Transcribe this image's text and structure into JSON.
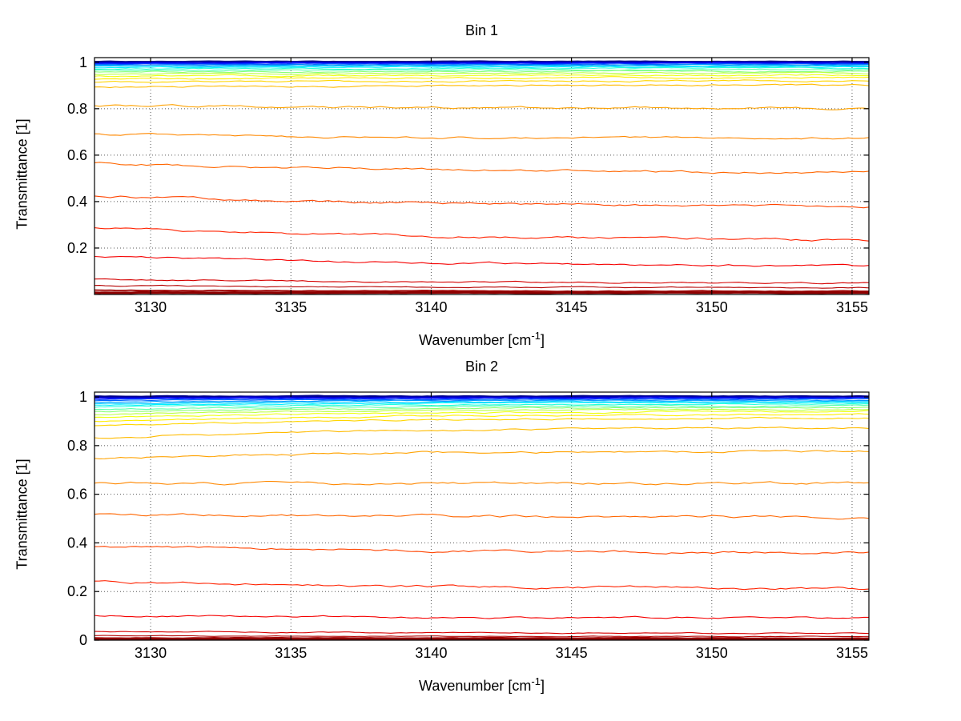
{
  "figure": {
    "background": "#ffffff",
    "axis_color": "#000000",
    "grid_style": "dotted"
  },
  "labels": {
    "xlabel_prefix": "Wavenumber [cm",
    "xlabel_sup": "-1",
    "xlabel_suffix": "]"
  },
  "chart_data": [
    {
      "type": "line",
      "title": "Bin 1",
      "xlabel": "Wavenumber [cm^-1]",
      "ylabel": "Transmittance [1]",
      "xlim": [
        3128,
        3155.6
      ],
      "ylim": [
        0,
        1.02
      ],
      "xticks": [
        3130,
        3135,
        3140,
        3145,
        3150,
        3155
      ],
      "yticks": [
        0.2,
        0.4,
        0.6,
        0.8,
        1
      ],
      "grid": true,
      "legend": "none",
      "series_note": "each series is a transmittance spectrum; l=value at left edge, r=value at right edge, k=exponential flattening rate, c=line color (jet colormap), w=line width, n=noise amplitude",
      "series": [
        {
          "l": 1.002,
          "r": 1.002,
          "k": 0,
          "c": "#00008F",
          "w": 2.6,
          "n": 0.0008
        },
        {
          "l": 0.999,
          "r": 0.999,
          "k": 0,
          "c": "#0000D0",
          "w": 1.4,
          "n": 0.0008
        },
        {
          "l": 0.996,
          "r": 0.997,
          "k": 2,
          "c": "#0000FF",
          "w": 1.1,
          "n": 0.001
        },
        {
          "l": 0.993,
          "r": 0.994,
          "k": 2,
          "c": "#0033FF",
          "w": 1.1,
          "n": 0.001
        },
        {
          "l": 0.99,
          "r": 0.991,
          "k": 2,
          "c": "#0066FF",
          "w": 1.1,
          "n": 0.0012
        },
        {
          "l": 0.986,
          "r": 0.988,
          "k": 2,
          "c": "#0099FF",
          "w": 1.1,
          "n": 0.0012
        },
        {
          "l": 0.982,
          "r": 0.984,
          "k": 2,
          "c": "#00CCFF",
          "w": 1.1,
          "n": 0.0014
        },
        {
          "l": 0.977,
          "r": 0.98,
          "k": 2,
          "c": "#00F0FF",
          "w": 1.1,
          "n": 0.0014
        },
        {
          "l": 0.971,
          "r": 0.975,
          "k": 2,
          "c": "#22FFDD",
          "w": 1.1,
          "n": 0.0016
        },
        {
          "l": 0.965,
          "r": 0.969,
          "k": 2,
          "c": "#55FFAA",
          "w": 1.1,
          "n": 0.0016
        },
        {
          "l": 0.958,
          "r": 0.962,
          "k": 2,
          "c": "#88FF77",
          "w": 1.1,
          "n": 0.0018
        },
        {
          "l": 0.949,
          "r": 0.955,
          "k": 2,
          "c": "#BBFF44",
          "w": 1.1,
          "n": 0.0018
        },
        {
          "l": 0.94,
          "r": 0.946,
          "k": 2,
          "c": "#EEFF11",
          "w": 1.1,
          "n": 0.002
        },
        {
          "l": 0.928,
          "r": 0.936,
          "k": 2,
          "c": "#FFEE00",
          "w": 1.1,
          "n": 0.002
        },
        {
          "l": 0.913,
          "r": 0.922,
          "k": 2,
          "c": "#FFD500",
          "w": 1.1,
          "n": 0.0022
        },
        {
          "l": 0.893,
          "r": 0.903,
          "k": 2,
          "c": "#FFBB00",
          "w": 1.1,
          "n": 0.0025
        },
        {
          "l": 0.815,
          "r": 0.8,
          "k": 2.5,
          "c": "#FFA200",
          "w": 1.1,
          "n": 0.003
        },
        {
          "l": 0.69,
          "r": 0.67,
          "k": 2.5,
          "c": "#FF8800",
          "w": 1.1,
          "n": 0.003
        },
        {
          "l": 0.565,
          "r": 0.52,
          "k": 2.2,
          "c": "#FF6600",
          "w": 1.1,
          "n": 0.0035
        },
        {
          "l": 0.425,
          "r": 0.375,
          "k": 2.2,
          "c": "#FF4400",
          "w": 1.1,
          "n": 0.0035
        },
        {
          "l": 0.29,
          "r": 0.225,
          "k": 2.0,
          "c": "#FF2200",
          "w": 1.1,
          "n": 0.0035
        },
        {
          "l": 0.165,
          "r": 0.113,
          "k": 1.8,
          "c": "#F50000",
          "w": 1.1,
          "n": 0.003
        },
        {
          "l": 0.065,
          "r": 0.047,
          "k": 2.0,
          "c": "#D50000",
          "w": 1.1,
          "n": 0.002
        },
        {
          "l": 0.038,
          "r": 0.028,
          "k": 2.0,
          "c": "#B50000",
          "w": 1.1,
          "n": 0.0015
        },
        {
          "l": 0.018,
          "r": 0.014,
          "k": 2.0,
          "c": "#9D0000",
          "w": 1.8,
          "n": 0.001
        },
        {
          "l": 0.008,
          "r": 0.008,
          "k": 0,
          "c": "#8F0000",
          "w": 3.0,
          "n": 0.0008
        }
      ]
    },
    {
      "type": "line",
      "title": "Bin 2",
      "xlabel": "Wavenumber [cm^-1]",
      "ylabel": "Transmittance [1]",
      "xlim": [
        3128,
        3155.6
      ],
      "ylim": [
        0,
        1.02
      ],
      "xticks": [
        3130,
        3135,
        3140,
        3145,
        3150,
        3155
      ],
      "yticks": [
        0,
        0.2,
        0.4,
        0.6,
        0.8,
        1
      ],
      "grid": true,
      "legend": "none",
      "series_note": "each series is a transmittance spectrum; l=value at left edge, r=value at right edge, k=exponential flattening rate, c=line color (jet colormap), w=line width, n=noise amplitude",
      "series": [
        {
          "l": 1.002,
          "r": 1.002,
          "k": 0,
          "c": "#00008F",
          "w": 2.6,
          "n": 0.0008
        },
        {
          "l": 0.998,
          "r": 0.999,
          "k": 3,
          "c": "#0000D0",
          "w": 1.4,
          "n": 0.0008
        },
        {
          "l": 0.994,
          "r": 0.996,
          "k": 3,
          "c": "#0000FF",
          "w": 1.1,
          "n": 0.001
        },
        {
          "l": 0.99,
          "r": 0.993,
          "k": 3,
          "c": "#0033FF",
          "w": 1.1,
          "n": 0.001
        },
        {
          "l": 0.985,
          "r": 0.99,
          "k": 3,
          "c": "#0066FF",
          "w": 1.1,
          "n": 0.0012
        },
        {
          "l": 0.979,
          "r": 0.986,
          "k": 3,
          "c": "#0099FF",
          "w": 1.1,
          "n": 0.0012
        },
        {
          "l": 0.973,
          "r": 0.982,
          "k": 3,
          "c": "#00CCFF",
          "w": 1.1,
          "n": 0.0014
        },
        {
          "l": 0.966,
          "r": 0.977,
          "k": 3,
          "c": "#00F0FF",
          "w": 1.1,
          "n": 0.0014
        },
        {
          "l": 0.958,
          "r": 0.971,
          "k": 3,
          "c": "#22FFDD",
          "w": 1.1,
          "n": 0.0016
        },
        {
          "l": 0.949,
          "r": 0.965,
          "k": 3,
          "c": "#55FFAA",
          "w": 1.1,
          "n": 0.0016
        },
        {
          "l": 0.939,
          "r": 0.958,
          "k": 3,
          "c": "#88FF77",
          "w": 1.1,
          "n": 0.0018
        },
        {
          "l": 0.928,
          "r": 0.95,
          "k": 3,
          "c": "#BBFF44",
          "w": 1.1,
          "n": 0.0018
        },
        {
          "l": 0.915,
          "r": 0.941,
          "k": 3,
          "c": "#EEFF11",
          "w": 1.1,
          "n": 0.002
        },
        {
          "l": 0.9,
          "r": 0.93,
          "k": 3,
          "c": "#FFEE00",
          "w": 1.1,
          "n": 0.002
        },
        {
          "l": 0.88,
          "r": 0.916,
          "k": 3,
          "c": "#FFD500",
          "w": 1.1,
          "n": 0.0022
        },
        {
          "l": 0.83,
          "r": 0.875,
          "k": 3,
          "c": "#FFBB00",
          "w": 1.1,
          "n": 0.0025
        },
        {
          "l": 0.745,
          "r": 0.78,
          "k": 3,
          "c": "#FFA200",
          "w": 1.1,
          "n": 0.003
        },
        {
          "l": 0.645,
          "r": 0.645,
          "k": 0,
          "c": "#FF8800",
          "w": 1.1,
          "n": 0.0035
        },
        {
          "l": 0.515,
          "r": 0.505,
          "k": 1.5,
          "c": "#FF6600",
          "w": 1.1,
          "n": 0.0035
        },
        {
          "l": 0.385,
          "r": 0.355,
          "k": 1.8,
          "c": "#FF4400",
          "w": 1.1,
          "n": 0.0035
        },
        {
          "l": 0.24,
          "r": 0.205,
          "k": 1.8,
          "c": "#FF2200",
          "w": 1.1,
          "n": 0.0035
        },
        {
          "l": 0.1,
          "r": 0.092,
          "k": 1.8,
          "c": "#F50000",
          "w": 1.1,
          "n": 0.0025
        },
        {
          "l": 0.035,
          "r": 0.028,
          "k": 2.0,
          "c": "#D50000",
          "w": 1.1,
          "n": 0.0015
        },
        {
          "l": 0.018,
          "r": 0.015,
          "k": 2.0,
          "c": "#B50000",
          "w": 1.1,
          "n": 0.001
        },
        {
          "l": 0.01,
          "r": 0.008,
          "k": 1.0,
          "c": "#9D0000",
          "w": 1.8,
          "n": 0.0008
        },
        {
          "l": 0.004,
          "r": 0.004,
          "k": 0,
          "c": "#8F0000",
          "w": 3.0,
          "n": 0.0006
        }
      ]
    }
  ]
}
